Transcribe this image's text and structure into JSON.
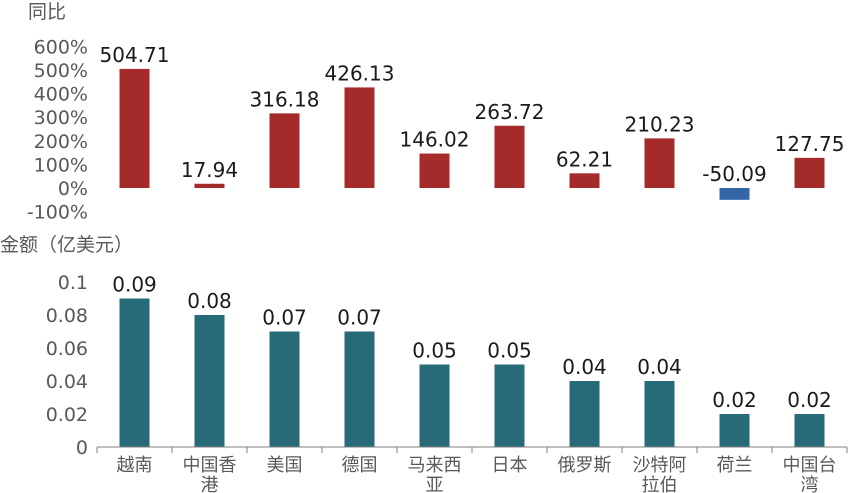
{
  "colors": {
    "positive": "#A52A2A",
    "negative": "#3465A8",
    "amount": "#276A78",
    "axis": "#7f7f7f",
    "tick_text": "#595959",
    "label_text": "#1a1a1a"
  },
  "chart_data": [
    {
      "type": "bar",
      "ylabel": "同比",
      "yticks": [
        "600%",
        "500%",
        "400%",
        "300%",
        "200%",
        "100%",
        "0%",
        "-100%"
      ],
      "ylim": [
        -100,
        600
      ],
      "categories": [
        "越南",
        "中国香港",
        "美国",
        "德国",
        "马来西亚",
        "日本",
        "俄罗斯",
        "沙特阿拉伯",
        "荷兰",
        "中国台湾"
      ],
      "values": [
        504.71,
        17.94,
        316.18,
        426.13,
        146.02,
        263.72,
        62.21,
        210.23,
        -50.09,
        127.75
      ],
      "value_labels": [
        "504.71",
        "17.94",
        "316.18",
        "426.13",
        "146.02",
        "263.72",
        "62.21",
        "210.23",
        "-50.09",
        "127.75"
      ]
    },
    {
      "type": "bar",
      "ylabel": "金额（亿美元）",
      "yticks": [
        "0.1",
        "0.08",
        "0.06",
        "0.04",
        "0.02",
        "0"
      ],
      "ylim": [
        0,
        0.1
      ],
      "categories": [
        "越南",
        "中国香港",
        "美国",
        "德国",
        "马来西亚",
        "日本",
        "俄罗斯",
        "沙特阿拉伯",
        "荷兰",
        "中国台湾"
      ],
      "category_labels": [
        [
          "越南"
        ],
        [
          "中国香",
          "港"
        ],
        [
          "美国"
        ],
        [
          "德国"
        ],
        [
          "马来西",
          "亚"
        ],
        [
          "日本"
        ],
        [
          "俄罗斯"
        ],
        [
          "沙特阿",
          "拉伯"
        ],
        [
          "荷兰"
        ],
        [
          "中国台",
          "湾"
        ]
      ],
      "values": [
        0.09,
        0.08,
        0.07,
        0.07,
        0.05,
        0.05,
        0.04,
        0.04,
        0.02,
        0.02
      ],
      "value_labels": [
        "0.09",
        "0.08",
        "0.07",
        "0.07",
        "0.05",
        "0.05",
        "0.04",
        "0.04",
        "0.02",
        "0.02"
      ]
    }
  ]
}
